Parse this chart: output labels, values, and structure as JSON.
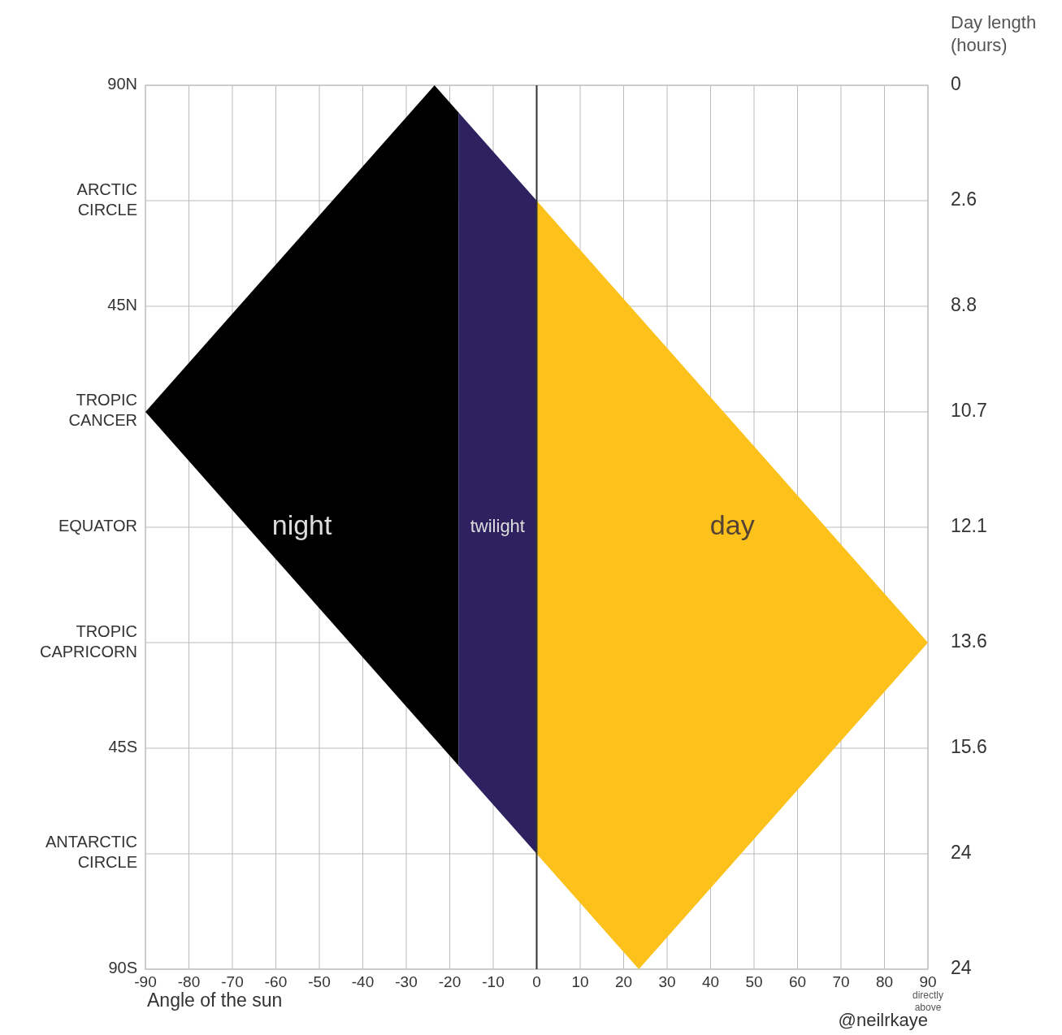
{
  "chart_data": {
    "type": "area",
    "xlabel": "Angle of the sun",
    "y2label": "Day length\n(hours)",
    "xlim": [
      -90,
      90
    ],
    "xticks": [
      -90,
      -80,
      -70,
      -60,
      -50,
      -40,
      -30,
      -20,
      -10,
      0,
      10,
      20,
      30,
      40,
      50,
      60,
      70,
      80,
      90
    ],
    "ylim": [
      -90,
      90
    ],
    "yticks": [
      {
        "value": 90,
        "label": "90N"
      },
      {
        "value": 66.5,
        "label": "ARCTIC\nCIRCLE"
      },
      {
        "value": 45,
        "label": "45N"
      },
      {
        "value": 23.5,
        "label": "TROPIC\nCANCER"
      },
      {
        "value": 0,
        "label": "EQUATOR"
      },
      {
        "value": -23.5,
        "label": "TROPIC\nCAPRICORN"
      },
      {
        "value": -45,
        "label": "45S"
      },
      {
        "value": -66.5,
        "label": "ANTARCTIC\nCIRCLE"
      },
      {
        "value": -90,
        "label": "90S"
      }
    ],
    "y2_categories": [
      "0",
      "2.6",
      "8.8",
      "10.7",
      "12.1",
      "13.6",
      "15.6",
      "24",
      "24"
    ],
    "grid": true,
    "series": [
      {
        "name": "night",
        "color": "#000000",
        "x": [
          -90,
          -23.5,
          -18,
          -18
        ],
        "values": [
          23.5,
          90,
          84.5,
          -48.5
        ]
      },
      {
        "name": "twilight",
        "color": "#2e2160",
        "x": [
          -18,
          0,
          0,
          -18
        ],
        "values": [
          84.5,
          66.5,
          -66.5,
          -48.5
        ]
      },
      {
        "name": "day",
        "color": "#fcc21b",
        "x": [
          0,
          90,
          23.5,
          0
        ],
        "values": [
          66.5,
          -23.5,
          -90,
          -66.5
        ]
      }
    ],
    "ref_lines": [
      {
        "axis": "x",
        "value": 0,
        "color": "#333333"
      }
    ],
    "annotations": [
      "directly above",
      "@neilrkaye"
    ]
  }
}
